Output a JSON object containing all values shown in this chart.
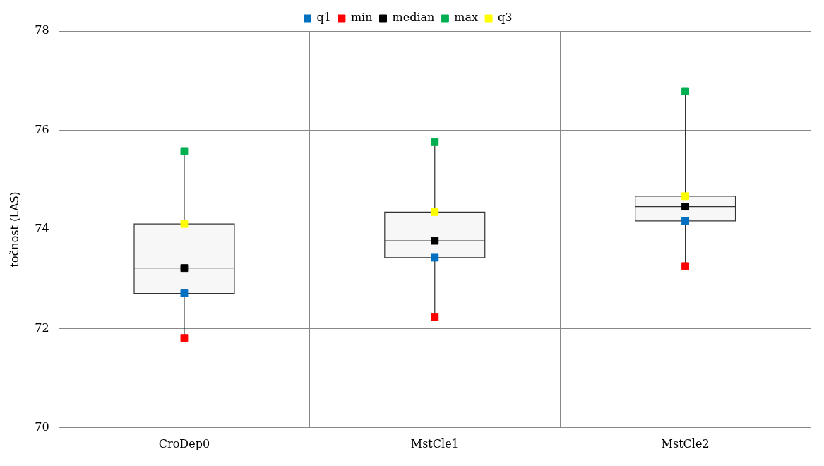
{
  "chart_data": {
    "type": "box",
    "ylabel": "točnost (LAS)",
    "categories": [
      "CroDep0",
      "MstCle1",
      "MstCle2"
    ],
    "boxes": [
      {
        "low": 71.81,
        "q1": 72.71,
        "median": 73.22,
        "q3": 74.11,
        "high": 75.58
      },
      {
        "low": 72.23,
        "q1": 73.43,
        "median": 73.77,
        "q3": 74.35,
        "high": 75.76
      },
      {
        "low": 73.26,
        "q1": 74.17,
        "median": 74.46,
        "q3": 74.67,
        "high": 76.79
      }
    ],
    "series": [
      {
        "type": "scatter",
        "name": "q1",
        "color": "#0070c0",
        "x": [
          "CroDep0",
          "MstCle1",
          "MstCle2"
        ],
        "values": [
          72.71,
          73.43,
          74.17
        ]
      },
      {
        "type": "scatter",
        "name": "min",
        "color": "#ff0000",
        "x": [
          "CroDep0",
          "MstCle1",
          "MstCle2"
        ],
        "values": [
          71.81,
          72.23,
          73.26
        ]
      },
      {
        "type": "scatter",
        "name": "median",
        "color": "#000000",
        "x": [
          "CroDep0",
          "MstCle1",
          "MstCle2"
        ],
        "values": [
          73.22,
          73.77,
          74.46
        ]
      },
      {
        "type": "scatter",
        "name": "max",
        "color": "#00b050",
        "x": [
          "CroDep0",
          "MstCle1",
          "MstCle2"
        ],
        "values": [
          75.58,
          75.76,
          76.79
        ]
      },
      {
        "type": "scatter",
        "name": "q3",
        "color": "#ffff00",
        "x": [
          "CroDep0",
          "MstCle1",
          "MstCle2"
        ],
        "values": [
          74.11,
          74.35,
          74.67
        ]
      }
    ],
    "ylim": [
      70,
      78
    ],
    "yticks": [
      70,
      72,
      74,
      76,
      78
    ],
    "grid": true,
    "legend": "top",
    "marker": "square"
  }
}
